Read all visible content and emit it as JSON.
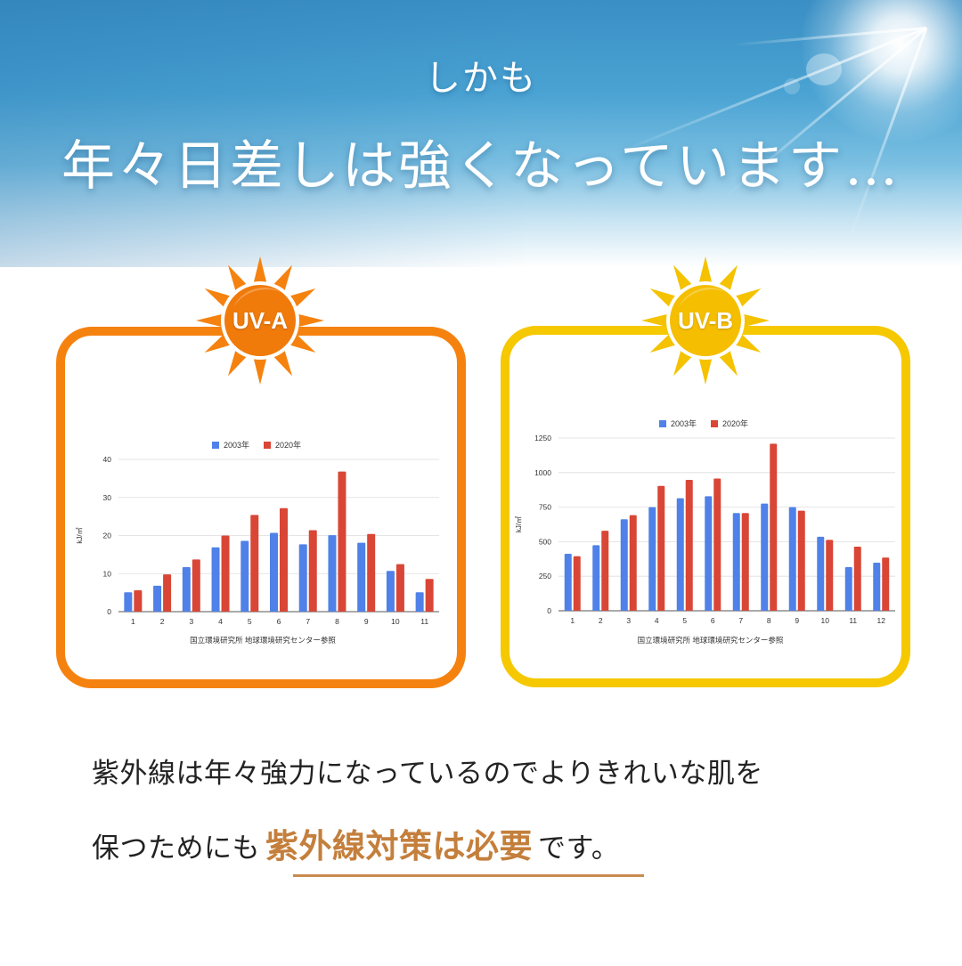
{
  "header": {
    "subtitle": "しかも",
    "title": "年々日差しは強くなっています…"
  },
  "colors": {
    "uva_accent": "#F5820F",
    "uvb_accent": "#F5C800",
    "series_2003": "#4F81E8",
    "series_2020": "#D94636",
    "emphasis": "#C47F3C"
  },
  "cards": [
    {
      "badge": "UV-A",
      "icon": "sun-icon"
    },
    {
      "badge": "UV-B",
      "icon": "sun-icon"
    }
  ],
  "chart_data": [
    {
      "type": "bar",
      "title": "UV-A",
      "categories": [
        "1",
        "2",
        "3",
        "4",
        "5",
        "6",
        "7",
        "8",
        "9",
        "10",
        "11"
      ],
      "series": [
        {
          "name": "2003年",
          "color": "#4F81E8",
          "values": [
            5.1,
            6.8,
            11.7,
            16.9,
            18.6,
            20.7,
            17.7,
            20.1,
            18.1,
            10.7,
            5.1
          ]
        },
        {
          "name": "2020年",
          "color": "#D94636",
          "values": [
            5.6,
            9.8,
            13.7,
            20.0,
            25.4,
            27.2,
            21.4,
            36.8,
            20.4,
            12.5,
            8.6
          ]
        }
      ],
      "xlabel": "",
      "ylabel": "kJ/㎡",
      "ylim": [
        0,
        40
      ],
      "yticks": [
        0,
        10,
        20,
        30,
        40
      ],
      "grid": true,
      "legend_position": "top",
      "source": "国立環境研究所 地球環境研究センター参照"
    },
    {
      "type": "bar",
      "title": "UV-B",
      "categories": [
        "1",
        "2",
        "3",
        "4",
        "5",
        "6",
        "7",
        "8",
        "9",
        "10",
        "11",
        "12"
      ],
      "series": [
        {
          "name": "2003年",
          "color": "#4F81E8",
          "values": [
            412,
            474,
            662,
            750,
            814,
            829,
            707,
            776,
            750,
            536,
            316,
            348
          ]
        },
        {
          "name": "2020年",
          "color": "#D94636",
          "values": [
            395,
            579,
            692,
            904,
            947,
            957,
            707,
            1209,
            724,
            513,
            464,
            385
          ]
        }
      ],
      "xlabel": "",
      "ylabel": "kJ/㎡",
      "ylim": [
        0,
        1250
      ],
      "yticks": [
        0,
        250,
        500,
        750,
        1000,
        1250
      ],
      "grid": true,
      "legend_position": "top",
      "source": "国立環境研究所 地球環境研究センター参照"
    }
  ],
  "message": {
    "line1": "紫外線は年々強力になっているのでよりきれいな肌を",
    "line2_prefix": "保つためにも",
    "line2_emphasis": "紫外線対策は必要",
    "line2_suffix": "です。"
  }
}
